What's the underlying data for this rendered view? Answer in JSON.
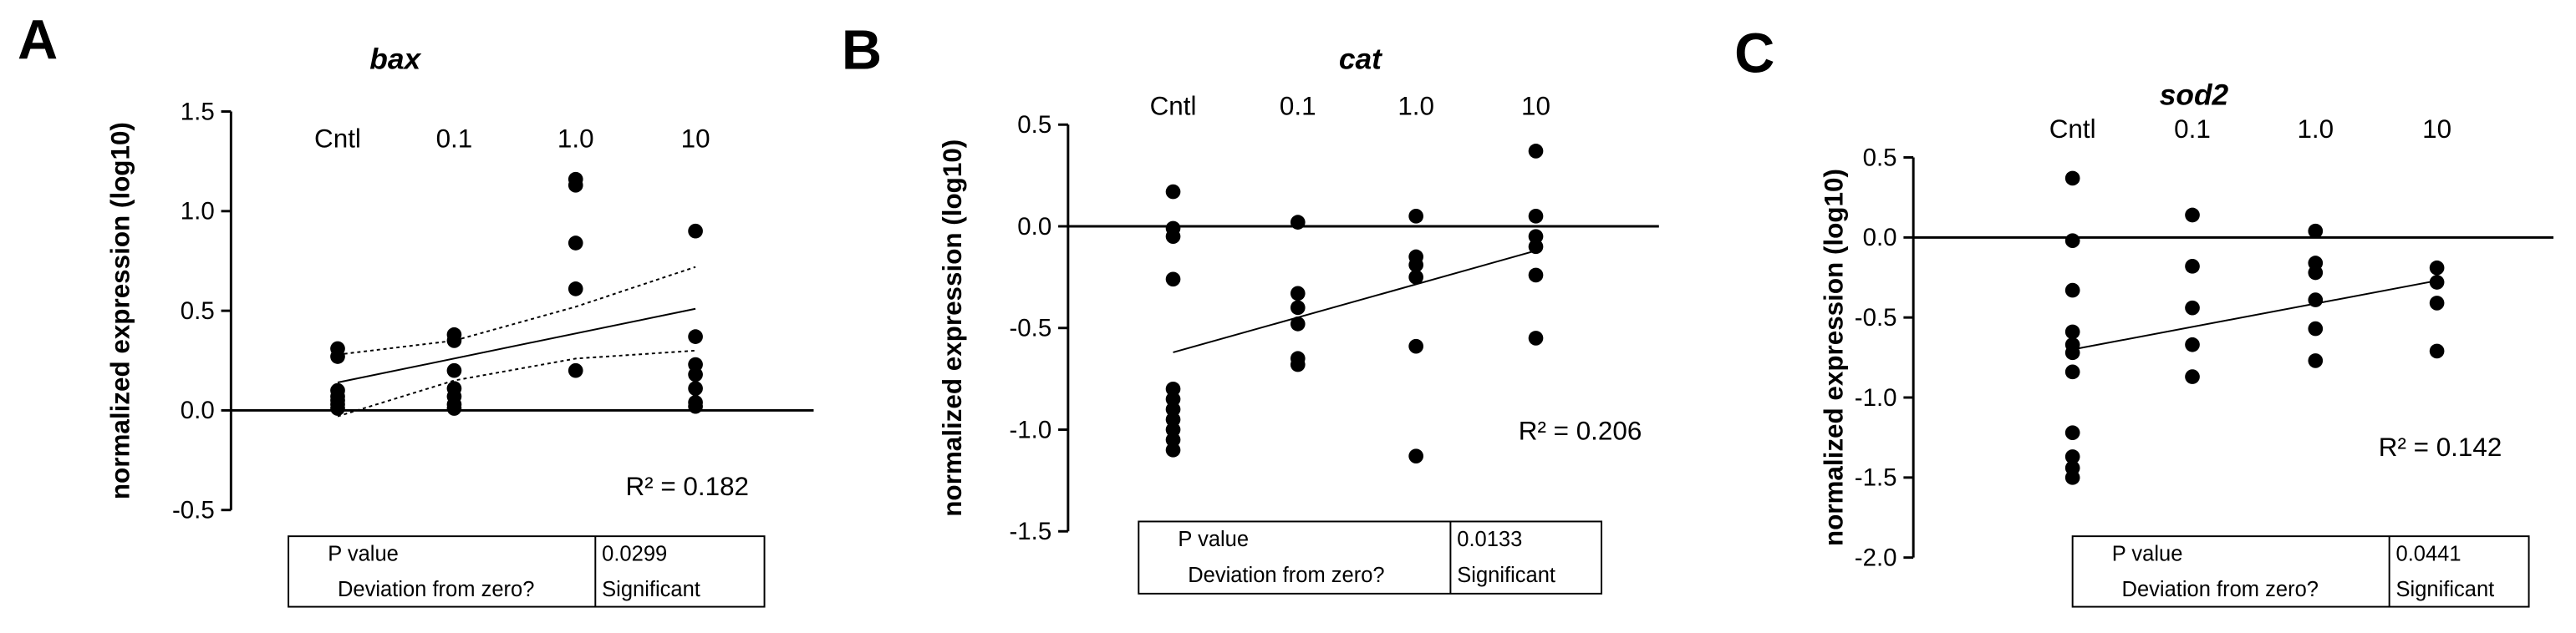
{
  "chart_data": [
    {
      "type": "scatter",
      "panel": "A",
      "title": "bax",
      "ylabel": "normalized expression (log10)",
      "categories": [
        "Cntl",
        "0.1",
        "1.0",
        "10"
      ],
      "points": [
        [
          0.31,
          0.27,
          0.1,
          0.07,
          0.05,
          0.03,
          0.01
        ],
        [
          0.38,
          0.35,
          0.2,
          0.11,
          0.07,
          0.03,
          0.01
        ],
        [
          1.16,
          1.13,
          0.84,
          0.61,
          0.2
        ],
        [
          0.9,
          0.37,
          0.23,
          0.18,
          0.11,
          0.04,
          0.02
        ]
      ],
      "fit": [
        0.14,
        0.51
      ],
      "confidence_band": {
        "upper": [
          0.28,
          0.35,
          0.52,
          0.72
        ],
        "lower": [
          -0.03,
          0.15,
          0.26,
          0.3
        ]
      },
      "ylim": [
        -0.5,
        1.5
      ],
      "yticks": [
        {
          "value": 1.5,
          "label": "1.5"
        },
        {
          "value": 1,
          "label": "1.0"
        },
        {
          "value": 0.5,
          "label": "0.5"
        },
        {
          "value": 0,
          "label": "0.0"
        },
        {
          "value": -0.5,
          "label": "-0.5"
        }
      ],
      "annotation": "R² = 0.182",
      "table": [
        [
          "P value",
          "0.0299"
        ],
        [
          "Deviation from zero?",
          "Significant"
        ]
      ]
    },
    {
      "type": "scatter",
      "panel": "B",
      "title": "cat",
      "ylabel": "normalized expression (log10)",
      "categories": [
        "Cntl",
        "0.1",
        "1.0",
        "10"
      ],
      "points": [
        [
          0.17,
          -0.01,
          -0.05,
          -0.26,
          -0.8,
          -0.85,
          -0.9,
          -0.95,
          -1.0,
          -1.05,
          -1.1
        ],
        [
          0.02,
          -0.33,
          -0.4,
          -0.48,
          -0.65,
          -0.68
        ],
        [
          0.05,
          -0.15,
          -0.19,
          -0.25,
          -0.59,
          -1.13
        ],
        [
          0.37,
          0.05,
          -0.05,
          -0.1,
          -0.24,
          -0.55
        ]
      ],
      "fit": [
        -0.62,
        -0.12
      ],
      "ylim": [
        -1.5,
        0.5
      ],
      "yticks": [
        {
          "value": 0.5,
          "label": "0.5"
        },
        {
          "value": 0,
          "label": "0.0"
        },
        {
          "value": -0.5,
          "label": "-0.5"
        },
        {
          "value": -1,
          "label": "-1.0"
        },
        {
          "value": -1.5,
          "label": "-1.5"
        }
      ],
      "annotation": "R² = 0.206",
      "table": [
        [
          "P value",
          "0.0133"
        ],
        [
          "Deviation from zero?",
          "Significant"
        ]
      ]
    },
    {
      "type": "scatter",
      "panel": "C",
      "title": "sod2",
      "ylabel": "normalized expression (log10)",
      "categories": [
        "Cntl",
        "0.1",
        "1.0",
        "10"
      ],
      "points": [
        [
          0.37,
          -0.02,
          -0.33,
          -0.59,
          -0.67,
          -0.72,
          -0.84,
          -1.22,
          -1.37,
          -1.44,
          -1.5
        ],
        [
          0.14,
          -0.18,
          -0.44,
          -0.67,
          -0.87
        ],
        [
          0.04,
          -0.16,
          -0.22,
          -0.39,
          -0.57,
          -0.77
        ],
        [
          -0.19,
          -0.28,
          -0.41,
          -0.71
        ]
      ],
      "fit": [
        -0.7,
        -0.27
      ],
      "ylim": [
        -2,
        0.5
      ],
      "yticks": [
        {
          "value": 0.5,
          "label": "0.5"
        },
        {
          "value": 0,
          "label": "0.0"
        },
        {
          "value": -0.5,
          "label": "-0.5"
        },
        {
          "value": -1,
          "label": "-1.0"
        },
        {
          "value": -1.5,
          "label": "-1.5"
        },
        {
          "value": -2,
          "label": "-2.0"
        }
      ],
      "annotation": "R² = 0.142",
      "table": [
        [
          "P value",
          "0.0441"
        ],
        [
          "Deviation from zero?",
          "Significant"
        ]
      ]
    }
  ]
}
